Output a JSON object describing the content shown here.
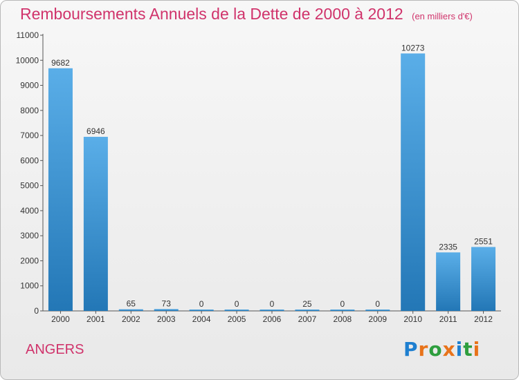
{
  "header": {
    "title": "Remboursements Annuels de la Dette de 2000 à 2012",
    "unit": "(en milliers d'€)"
  },
  "footer": {
    "city": "ANGERS",
    "logo_text": "Proxiti",
    "logo_colors": [
      "#1e7fd0",
      "#e8731a",
      "#2e9e3e",
      "#e8731a",
      "#1e7fd0",
      "#2e9e3e",
      "#e8731a"
    ]
  },
  "colors": {
    "bar_light": "#5aaee8",
    "bar_dark": "#2377b6",
    "title": "#d0336b"
  },
  "chart_data": {
    "type": "bar",
    "title": "Remboursements Annuels de la Dette de 2000 à 2012",
    "categories": [
      "2000",
      "2001",
      "2002",
      "2003",
      "2004",
      "2005",
      "2006",
      "2007",
      "2008",
      "2009",
      "2010",
      "2011",
      "2012"
    ],
    "values": [
      9682,
      6946,
      65,
      73,
      0,
      0,
      0,
      25,
      0,
      0,
      10273,
      2335,
      2551
    ],
    "ylim": [
      0,
      11000
    ],
    "yticks": [
      0,
      1000,
      2000,
      3000,
      4000,
      5000,
      6000,
      7000,
      8000,
      9000,
      10000,
      11000
    ],
    "grid": false,
    "data_labels": true
  }
}
